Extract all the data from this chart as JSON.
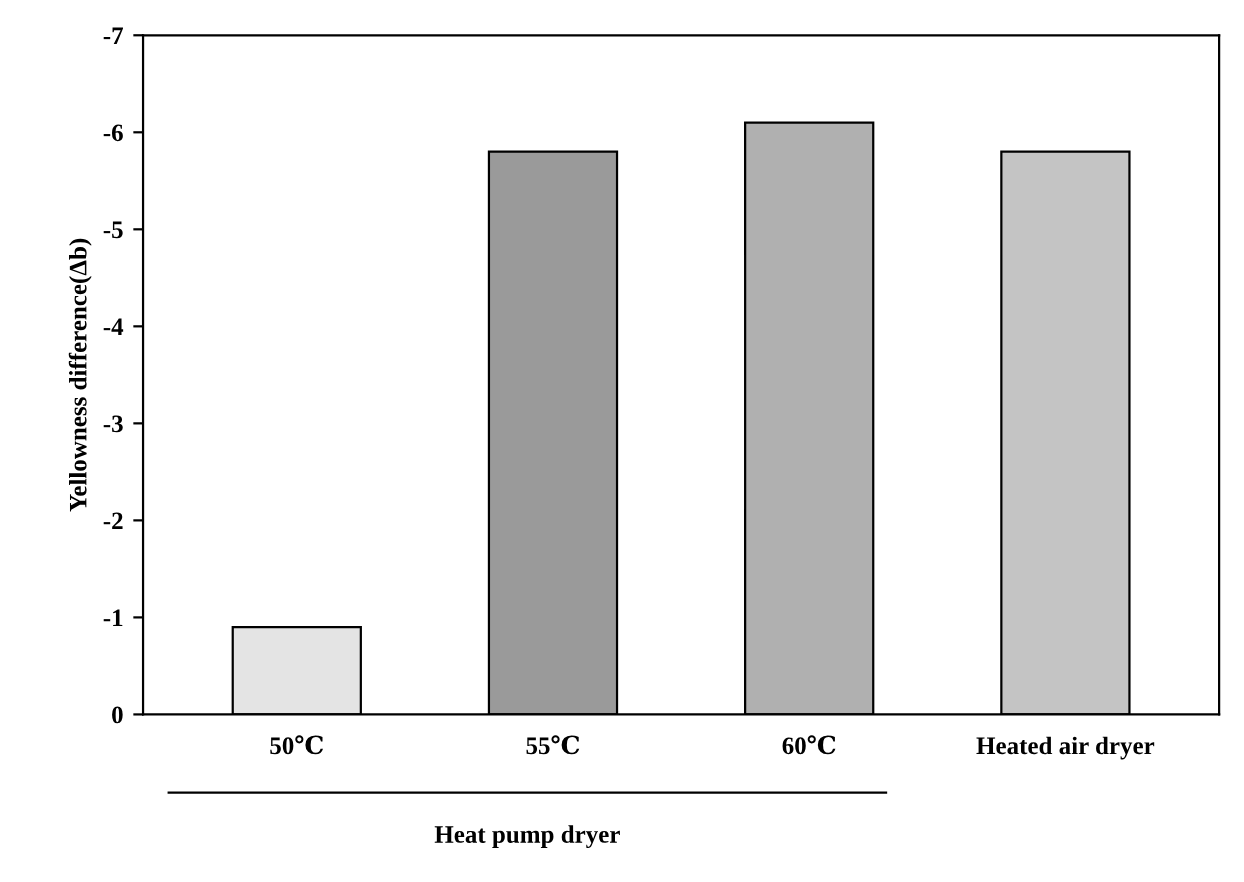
{
  "chart_data": {
    "type": "bar",
    "ylabel": "Yellowness difference(Δb)",
    "categories": [
      "50℃",
      "55℃",
      "60℃",
      "Heated air dryer"
    ],
    "values": [
      -0.9,
      -5.8,
      -6.1,
      -5.8
    ],
    "colors": [
      "#e4e4e4",
      "#9a9a9a",
      "#b0b0b0",
      "#c4c4c4"
    ],
    "ylim": [
      0,
      -7
    ],
    "yticks": [
      0,
      -1,
      -2,
      -3,
      -4,
      -5,
      -6,
      -7
    ],
    "grid": false,
    "annotations": [
      "Heat pump dryer"
    ]
  }
}
